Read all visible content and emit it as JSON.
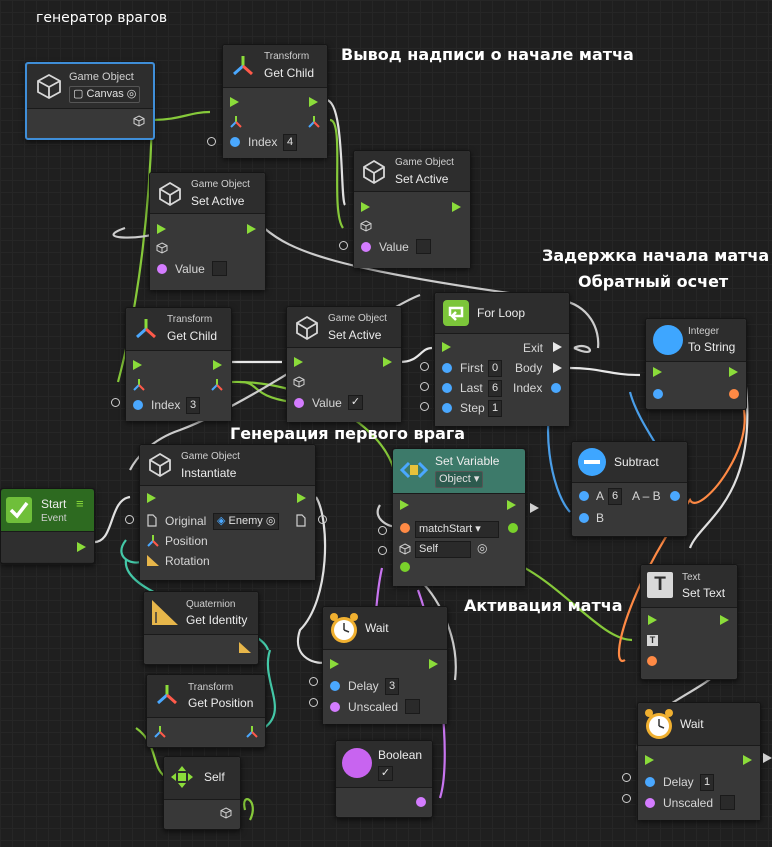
{
  "graph_title": "генератор врагов",
  "annotations": {
    "start_text": "Вывод надписи о начале матча",
    "delay": "Задержка начала матча",
    "countdown": "Обратный осчет",
    "first_enemy": "Генерация первого врага",
    "activation": "Активация матча"
  },
  "nodes": {
    "canvas_obj": {
      "kind": "Game Object",
      "value": "Canvas"
    },
    "getchild1": {
      "kind": "Transform",
      "title": "Get Child",
      "index_label": "Index",
      "index": "4"
    },
    "setactive_top": {
      "kind": "Game Object",
      "title": "Set Active",
      "value_label": "Value"
    },
    "setactive_left": {
      "kind": "Game Object",
      "title": "Set Active",
      "value_label": "Value"
    },
    "getchild2": {
      "kind": "Transform",
      "title": "Get Child",
      "index_label": "Index",
      "index": "3"
    },
    "setactive_mid": {
      "kind": "Game Object",
      "title": "Set Active",
      "value_label": "Value",
      "checked": "✓"
    },
    "forloop": {
      "title": "For Loop",
      "first_label": "First",
      "first": "0",
      "last_label": "Last",
      "last": "6",
      "step_label": "Step",
      "step": "1",
      "exit": "Exit",
      "body": "Body",
      "index": "Index"
    },
    "tostring": {
      "kind": "Integer",
      "title": "To String"
    },
    "start": {
      "title": "Start",
      "subtitle": "Event"
    },
    "instantiate": {
      "kind": "Game Object",
      "title": "Instantiate",
      "original_label": "Original",
      "original": "Enemy",
      "position_label": "Position",
      "rotation_label": "Rotation"
    },
    "setvar": {
      "title": "Set Variable",
      "type": "Object",
      "name": "matchStart",
      "target": "Self"
    },
    "subtract": {
      "title": "Subtract",
      "a_label": "A",
      "a": "6",
      "a_minus_b": "A – B",
      "b_label": "B"
    },
    "identity": {
      "kind": "Quaternion",
      "title": "Get Identity"
    },
    "wait1": {
      "title": "Wait",
      "delay_label": "Delay",
      "delay": "3",
      "unscaled_label": "Unscaled"
    },
    "settext": {
      "kind": "Text",
      "title": "Set Text"
    },
    "getposition": {
      "kind": "Transform",
      "title": "Get Position"
    },
    "boolean": {
      "title": "Boolean",
      "checked": "✓"
    },
    "self": {
      "title": "Self"
    },
    "wait2": {
      "title": "Wait",
      "delay_label": "Delay",
      "delay": "1",
      "unscaled_label": "Unscaled"
    }
  },
  "colors": {
    "flow": "#8bdc3a",
    "float": "#4aa8ff",
    "object": "#d47cff",
    "string": "#ff8a45",
    "selection": "#3f8ed8"
  }
}
